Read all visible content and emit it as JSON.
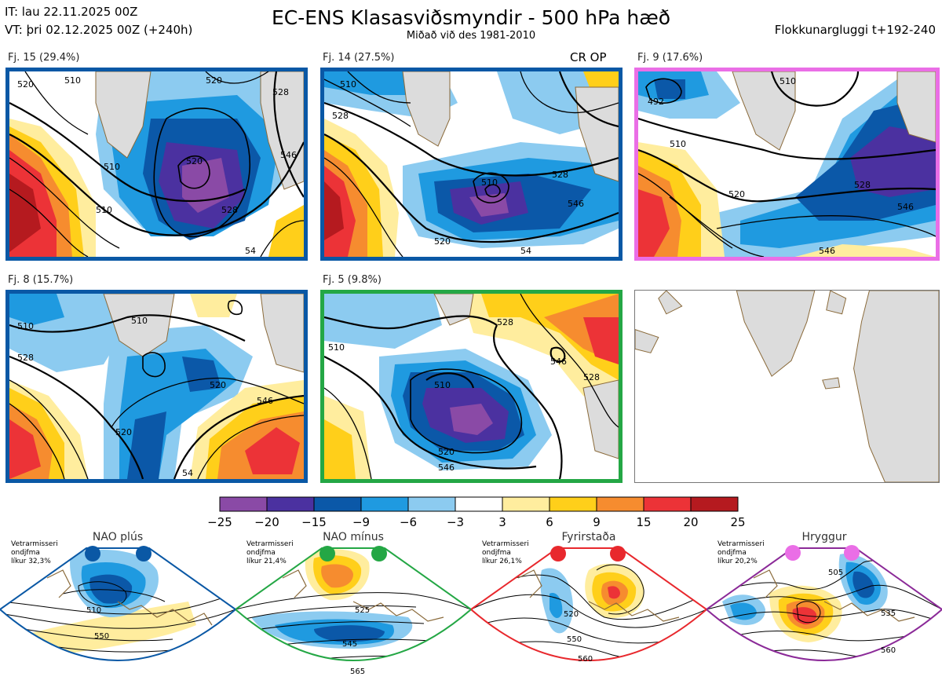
{
  "header": {
    "it": "IT: lau 22.11.2025 00Z",
    "vt": "VT: þri 02.12.2025 00Z  (+240h)",
    "title": "EC-ENS Klasasviðsmyndir - 500 hPa hæð",
    "subtitle": "Miðað við des 1981-2010",
    "window": "Flokkunargluggi t+192-240"
  },
  "panels": [
    {
      "label": "Fj. 15 (29.4%)",
      "note": "",
      "border": "#0a58a5",
      "cl": [
        "520",
        "510",
        "520",
        "528",
        "546",
        "54",
        "520",
        "528",
        "510",
        "510"
      ]
    },
    {
      "label": "Fj. 14 (27.5%)",
      "note": "CR OP",
      "border": "#0a58a5",
      "cl": [
        "510",
        "520",
        "528",
        "546",
        "528",
        "510",
        "54"
      ]
    },
    {
      "label": "Fj. 9 (17.6%)",
      "note": "",
      "border": "#ea6ee6",
      "cl": [
        "492",
        "510",
        "520",
        "528",
        "546",
        "546",
        "510"
      ]
    },
    {
      "label": "Fj. 8 (15.7%)",
      "note": "",
      "border": "#0a58a5",
      "cl": [
        "510",
        "510",
        "520",
        "528",
        "546",
        "54",
        "520"
      ]
    },
    {
      "label": "Fj. 5 (9.8%)",
      "note": "",
      "border": "#24a745",
      "cl": [
        "510",
        "520",
        "528",
        "546",
        "528",
        "546",
        "510"
      ]
    }
  ],
  "colorbar": {
    "ticks": [
      "−25",
      "−20",
      "−15",
      "−9",
      "−6",
      "−3",
      "3",
      "6",
      "9",
      "15",
      "20",
      "25"
    ],
    "colors": [
      "#8a4aa6",
      "#4b31a0",
      "#0b58a8",
      "#1f9ae0",
      "#8ccbf0",
      "#ffffff",
      "#ffed9e",
      "#ffcf1a",
      "#f68c2f",
      "#ec3337",
      "#b51a1f"
    ]
  },
  "regimes": [
    {
      "title": "NAO plús",
      "note": "Vetrarmisseri\nondjfma\nlíkur 32,3%",
      "border": "#0a58a5",
      "dot": "#0a58a5",
      "cl": [
        "510",
        "550"
      ]
    },
    {
      "title": "NAO mínus",
      "note": "Vetrarmisseri\nondjfma\nlíkur 21,4%",
      "border": "#24a745",
      "dot": "#24a745",
      "cl": [
        "525",
        "545",
        "565"
      ]
    },
    {
      "title": "Fyrirstaða",
      "note": "Vetrarmisseri\nondjfma\nlíkur 26,1%",
      "border": "#e8282d",
      "dot": "#e8282d",
      "cl": [
        "520",
        "550",
        "560"
      ]
    },
    {
      "title": "Hryggur",
      "note": "Vetrarmisseri\nondjfma\nlíkur 20,2%",
      "border": "#8b2a98",
      "dot": "#ea6ee6",
      "cl": [
        "505",
        "535",
        "560"
      ]
    }
  ],
  "colors": {
    "land": "#dcdcdc",
    "coast": "#8a6a3a"
  }
}
